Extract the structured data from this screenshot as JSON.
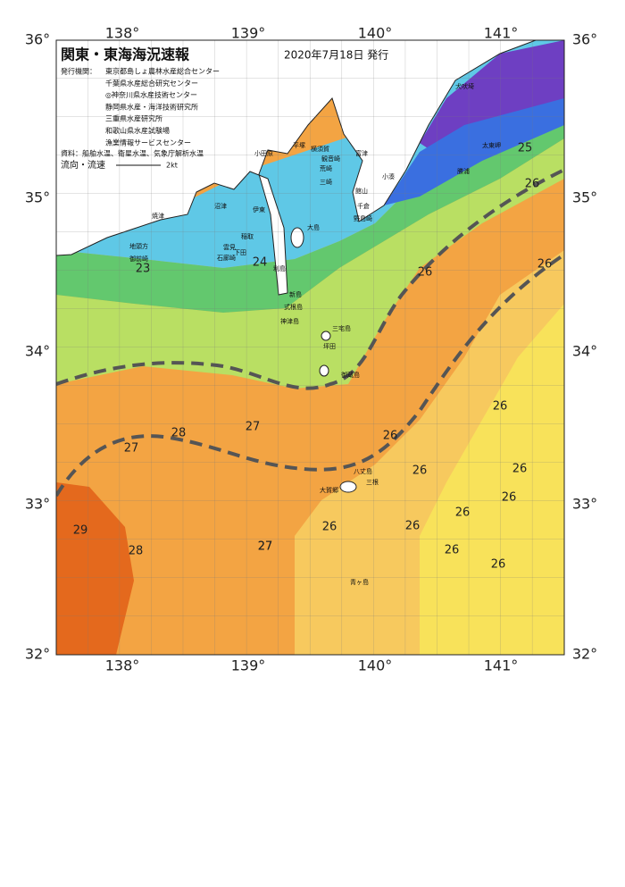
{
  "header": {
    "title": "関東・東海海況速報",
    "date": "2020年7月18日 発行",
    "issuer_label": "発行機関：",
    "issuers": [
      "東京都島しょ農林水産総合センター",
      "千葉県水産総合研究センター",
      "◎神奈川県水産技術センター",
      "静岡県水産・海洋技術研究所",
      "三重県水産研究所",
      "和歌山県水産試験場",
      "漁業情報サービスセンター"
    ],
    "source": "資料：船舶水温、衛星水温、気象庁解析水温",
    "current_label": "流向・流速",
    "current_scale": "2kt"
  },
  "longitude_labels": {
    "top": [
      "138°",
      "139°",
      "140°",
      "141°"
    ],
    "bottom": [
      "138°",
      "139°",
      "140°",
      "141°"
    ]
  },
  "latitude_labels": {
    "left": [
      "36°",
      "35°",
      "34°",
      "33°",
      "32°"
    ],
    "right": [
      "36°",
      "35°",
      "34°",
      "33°",
      "32°"
    ]
  },
  "place_names": [
    "犬吠埼",
    "太東岬",
    "勝浦",
    "小湊",
    "館山",
    "千倉",
    "野島崎",
    "富津",
    "観音崎",
    "横須賀",
    "平塚",
    "荒崎",
    "三崎",
    "小田原",
    "沼津",
    "伊東",
    "焼津",
    "大島",
    "稲取",
    "下田",
    "雲見",
    "石廊崎",
    "地頭方",
    "御前崎",
    "利島",
    "新島",
    "式根島",
    "神津島",
    "三宅島",
    "坪田",
    "御蔵島",
    "八丈島",
    "三根",
    "大賀郷",
    "青ヶ島"
  ],
  "temperature_labels": [
    "25",
    "26",
    "26",
    "26",
    "23",
    "24",
    "26",
    "26",
    "27",
    "28",
    "27",
    "27",
    "26",
    "26",
    "26",
    "26",
    "26",
    "26",
    "29",
    "28",
    "27",
    "26",
    "26"
  ]
}
